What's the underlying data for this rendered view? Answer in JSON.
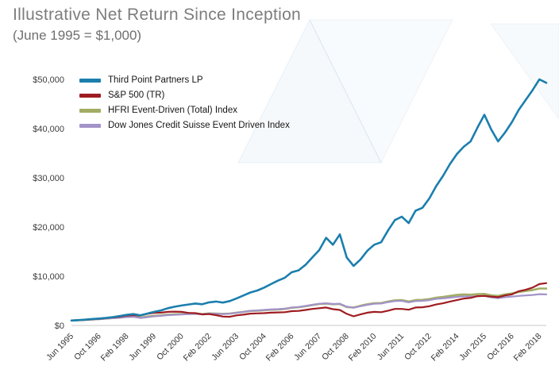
{
  "header": {
    "title": "Illustrative Net Return Since Inception",
    "subtitle": "(June 1995 = $1,000)"
  },
  "chart_data": {
    "type": "line",
    "title": "Illustrative Net Return Since Inception",
    "subtitle": "(June 1995 = $1,000)",
    "grid": false,
    "legend_position": "top-left",
    "ylim": [
      0,
      50000
    ],
    "y_ticks": [
      {
        "value": 0,
        "label": "$0"
      },
      {
        "value": 10000,
        "label": "$10,000"
      },
      {
        "value": 20000,
        "label": "$20,000"
      },
      {
        "value": 30000,
        "label": "$30,000"
      },
      {
        "value": 40000,
        "label": "$40,000"
      },
      {
        "value": 50000,
        "label": "$50,000"
      }
    ],
    "x_step_months": 4,
    "x_tick_months": [
      0,
      16,
      32,
      48,
      64,
      80,
      96,
      112,
      128,
      144,
      160,
      176,
      192,
      208,
      224,
      240,
      256,
      272
    ],
    "x_tick_labels": [
      "Jun 1995",
      "Oct 1996",
      "Feb 1998",
      "Jun 1999",
      "Oct 2000",
      "Feb 2002",
      "Jun 2003",
      "Oct 2004",
      "Feb 2006",
      "Jun 2007",
      "Oct 2008",
      "Feb 2010",
      "Jun 2011",
      "Oct 2012",
      "Feb 2014",
      "Jun 2015",
      "Oct 2016",
      "Feb 2018"
    ],
    "series": [
      {
        "name": "Third Point Partners LP",
        "color": "#1b7fad",
        "width": 2.6,
        "values": [
          1000,
          1080,
          1180,
          1300,
          1400,
          1520,
          1700,
          1900,
          2150,
          2300,
          2050,
          2400,
          2750,
          3050,
          3500,
          3800,
          4050,
          4250,
          4450,
          4300,
          4700,
          4850,
          4650,
          4950,
          5500,
          6100,
          6700,
          7100,
          7700,
          8400,
          9100,
          9700,
          10800,
          11200,
          12300,
          13800,
          15300,
          17800,
          16400,
          18500,
          13800,
          12100,
          13400,
          15200,
          16400,
          16900,
          19300,
          21400,
          22100,
          20800,
          23300,
          23900,
          25800,
          28300,
          30400,
          32800,
          34800,
          36300,
          37400,
          40200,
          42800,
          39800,
          37400,
          39200,
          41300,
          43800,
          45800,
          47800,
          50000,
          49300
        ]
      },
      {
        "name": "S&P 500 (TR)",
        "color": "#9e1c21",
        "width": 2.2,
        "values": [
          1000,
          1060,
          1130,
          1250,
          1340,
          1480,
          1650,
          1750,
          2000,
          2100,
          2000,
          2350,
          2550,
          2600,
          2750,
          2800,
          2750,
          2550,
          2500,
          2250,
          2300,
          2100,
          1800,
          1750,
          2050,
          2200,
          2400,
          2450,
          2500,
          2600,
          2650,
          2700,
          2900,
          2950,
          3150,
          3350,
          3500,
          3650,
          3300,
          3150,
          2350,
          1850,
          2250,
          2600,
          2750,
          2700,
          3000,
          3350,
          3350,
          3200,
          3650,
          3700,
          3900,
          4250,
          4500,
          4850,
          5150,
          5450,
          5600,
          5950,
          6000,
          5850,
          5750,
          6100,
          6300,
          6950,
          7250,
          7700,
          8400,
          8600
        ]
      },
      {
        "name": "HFRI Event-Driven (Total) Index",
        "color": "#a2ad63",
        "width": 2.6,
        "values": [
          1000,
          1070,
          1150,
          1230,
          1300,
          1400,
          1500,
          1600,
          1750,
          1800,
          1600,
          1800,
          1950,
          2050,
          2200,
          2250,
          2300,
          2350,
          2400,
          2300,
          2450,
          2400,
          2350,
          2400,
          2600,
          2750,
          2950,
          3000,
          3100,
          3200,
          3250,
          3350,
          3600,
          3700,
          3900,
          4150,
          4350,
          4450,
          4300,
          4350,
          3750,
          3650,
          4000,
          4300,
          4500,
          4550,
          4850,
          5100,
          5150,
          4850,
          5150,
          5200,
          5350,
          5650,
          5800,
          6000,
          6200,
          6300,
          6250,
          6350,
          6400,
          6100,
          6000,
          6300,
          6500,
          6800,
          7000,
          7200,
          7500,
          7500
        ]
      },
      {
        "name": "Dow Jones Credit Suisse Event Driven Index",
        "color": "#a393c9",
        "width": 2.2,
        "values": [
          1000,
          1065,
          1140,
          1210,
          1280,
          1380,
          1480,
          1570,
          1700,
          1750,
          1520,
          1680,
          1850,
          1950,
          2100,
          2150,
          2250,
          2300,
          2350,
          2280,
          2400,
          2380,
          2320,
          2380,
          2550,
          2750,
          2950,
          3050,
          3150,
          3250,
          3300,
          3400,
          3650,
          3750,
          3950,
          4200,
          4400,
          4500,
          4350,
          4400,
          3800,
          3600,
          3900,
          4200,
          4400,
          4450,
          4750,
          4950,
          5000,
          4700,
          4950,
          5000,
          5150,
          5400,
          5500,
          5650,
          5800,
          5900,
          5850,
          5950,
          6000,
          5700,
          5550,
          5750,
          5850,
          6000,
          6100,
          6200,
          6350,
          6300
        ]
      }
    ]
  }
}
